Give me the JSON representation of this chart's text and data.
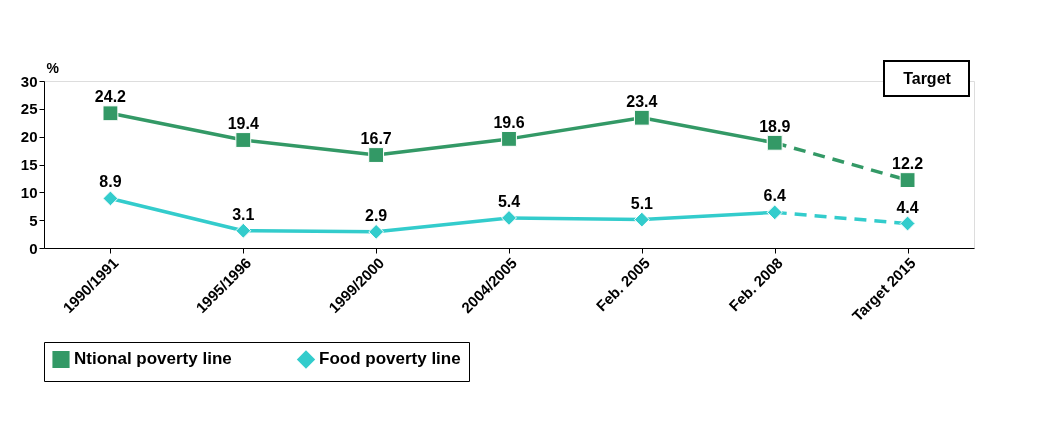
{
  "chart_data": {
    "type": "line",
    "categories": [
      "1990/1991",
      "1995/1996",
      "1999/2000",
      "2004/2005",
      "Feb. 2005",
      "Feb. 2008",
      "Target 2015"
    ],
    "ylabel": "%",
    "ylim": [
      0,
      30
    ],
    "yticks": [
      0,
      5,
      10,
      15,
      20,
      25,
      30
    ],
    "series": [
      {
        "name": "Ntional poverty line",
        "color": "#339966",
        "marker": "square",
        "line_style": "solid",
        "values": [
          24.2,
          19.4,
          16.7,
          19.6,
          23.4,
          18.9,
          null
        ],
        "value_labels": [
          "24.2",
          "19.4",
          "16.7",
          "19.6",
          "23.4",
          "18.9",
          null
        ]
      },
      {
        "name": "Food poverty line",
        "color": "#33cccc",
        "marker": "diamond",
        "line_style": "solid",
        "values": [
          8.9,
          3.1,
          2.9,
          5.4,
          5.1,
          6.4,
          null
        ],
        "value_labels": [
          "8.9",
          "3.1",
          "2.9",
          "5.4",
          "5.1",
          "6.4",
          null
        ]
      },
      {
        "color": "#339966",
        "marker": "square",
        "line_style": "dashed",
        "values": [
          null,
          null,
          null,
          null,
          null,
          18.9,
          12.2
        ],
        "value_labels": [
          null,
          null,
          null,
          null,
          null,
          null,
          "12.2"
        ]
      },
      {
        "color": "#33cccc",
        "marker": "diamond",
        "line_style": "dashed",
        "values": [
          null,
          null,
          null,
          null,
          null,
          6.4,
          4.4
        ],
        "value_labels": [
          null,
          null,
          null,
          null,
          null,
          null,
          "4.4"
        ]
      }
    ],
    "annotations": [
      "Target"
    ],
    "grid": false,
    "legend": "bottom"
  }
}
